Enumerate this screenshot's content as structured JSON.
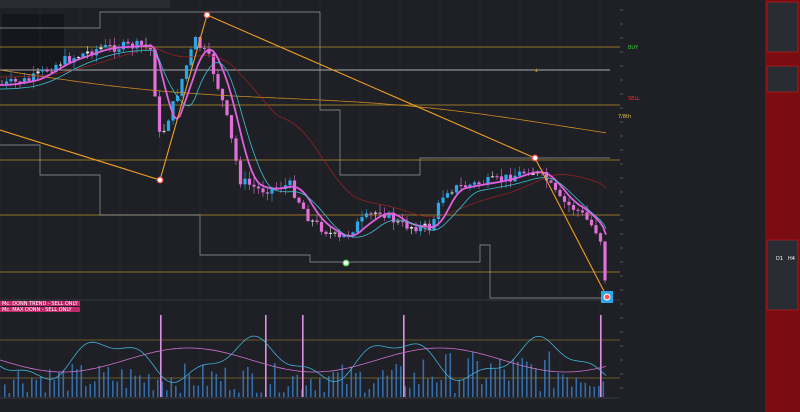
{
  "chart_labels": {
    "buy": "BUY",
    "sell": "SELL",
    "fib": "7/8th"
  },
  "indicators": [
    "Mc. DONN TREND - SELL ONLY",
    "Mc. MAX DONN - SELL ONLY"
  ],
  "signal_panel": {
    "d1": "D1",
    "h4": "H4"
  }
}
